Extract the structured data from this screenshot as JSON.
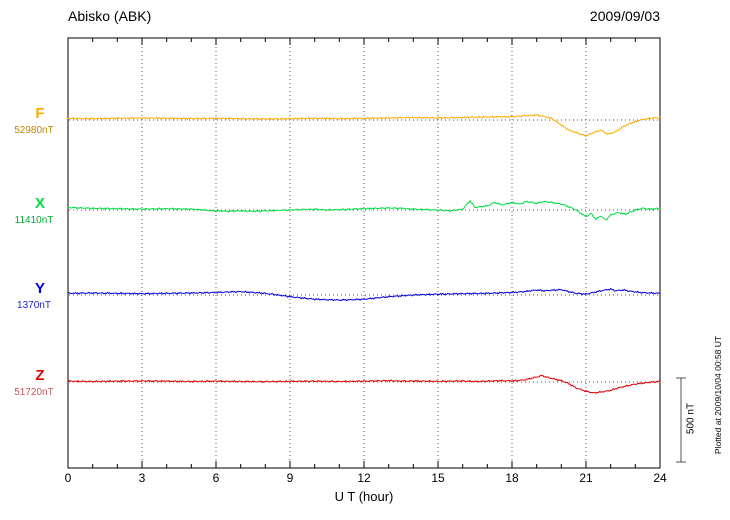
{
  "header": {
    "title": "Abisko (ABK)",
    "date": "2009/09/03"
  },
  "chart_data": {
    "type": "line",
    "station": "Abisko (ABK)",
    "date": "2009/09/03",
    "xlabel": "U T (hour)",
    "xlim": [
      0,
      24
    ],
    "x_ticks": [
      0,
      3,
      6,
      9,
      12,
      15,
      18,
      21,
      24
    ],
    "scale_bar": {
      "label": "500 nT",
      "nT": 500
    },
    "plotted_at": "Plotted at 2009/10/04 00:58 UT",
    "points_format": "[hour_UT, offset_nT_from_baseline]",
    "series": [
      {
        "name": "F",
        "baseline_label": "52980nT",
        "baseline_nT": 52980,
        "color": "#ffaa00",
        "value_color": "#bb8800",
        "points": [
          [
            0,
            10
          ],
          [
            1,
            8
          ],
          [
            2,
            10
          ],
          [
            3,
            12
          ],
          [
            4,
            10
          ],
          [
            5,
            8
          ],
          [
            6,
            10
          ],
          [
            7,
            8
          ],
          [
            8,
            6
          ],
          [
            9,
            8
          ],
          [
            10,
            10
          ],
          [
            11,
            8
          ],
          [
            12,
            10
          ],
          [
            13,
            12
          ],
          [
            14,
            15
          ],
          [
            15,
            12
          ],
          [
            16,
            15
          ],
          [
            17,
            18
          ],
          [
            18,
            20
          ],
          [
            18.5,
            25
          ],
          [
            19,
            30
          ],
          [
            19.3,
            20
          ],
          [
            19.6,
            10
          ],
          [
            20,
            -30
          ],
          [
            20.3,
            -60
          ],
          [
            20.7,
            -80
          ],
          [
            21,
            -95
          ],
          [
            21.3,
            -75
          ],
          [
            21.6,
            -60
          ],
          [
            21.9,
            -85
          ],
          [
            22.2,
            -70
          ],
          [
            22.5,
            -40
          ],
          [
            22.8,
            -20
          ],
          [
            23.2,
            0
          ],
          [
            23.6,
            10
          ],
          [
            24,
            15
          ]
        ]
      },
      {
        "name": "X",
        "baseline_label": "11410nT",
        "baseline_nT": 11410,
        "color": "#00dd44",
        "value_color": "#00aa33",
        "points": [
          [
            0,
            15
          ],
          [
            0.5,
            12
          ],
          [
            1,
            10
          ],
          [
            2,
            8
          ],
          [
            3,
            5
          ],
          [
            4,
            8
          ],
          [
            5,
            5
          ],
          [
            5.5,
            0
          ],
          [
            6,
            -5
          ],
          [
            6.5,
            -8
          ],
          [
            7,
            -5
          ],
          [
            7.5,
            -8
          ],
          [
            8,
            -5
          ],
          [
            9,
            0
          ],
          [
            10,
            5
          ],
          [
            10.5,
            0
          ],
          [
            11,
            2
          ],
          [
            12,
            8
          ],
          [
            13,
            12
          ],
          [
            13.5,
            10
          ],
          [
            14,
            5
          ],
          [
            15,
            0
          ],
          [
            15.5,
            -5
          ],
          [
            16,
            5
          ],
          [
            16.3,
            55
          ],
          [
            16.5,
            15
          ],
          [
            17,
            25
          ],
          [
            17.3,
            45
          ],
          [
            17.6,
            30
          ],
          [
            18,
            45
          ],
          [
            18.3,
            35
          ],
          [
            18.6,
            50
          ],
          [
            19,
            40
          ],
          [
            19.3,
            50
          ],
          [
            19.6,
            45
          ],
          [
            20,
            35
          ],
          [
            20.3,
            20
          ],
          [
            20.6,
            0
          ],
          [
            21,
            -40
          ],
          [
            21.2,
            -20
          ],
          [
            21.4,
            -55
          ],
          [
            21.6,
            -35
          ],
          [
            21.8,
            -60
          ],
          [
            22,
            -30
          ],
          [
            22.3,
            -15
          ],
          [
            22.6,
            -25
          ],
          [
            23,
            0
          ],
          [
            23.3,
            10
          ],
          [
            23.6,
            5
          ],
          [
            24,
            10
          ]
        ]
      },
      {
        "name": "Y",
        "baseline_label": "1370nT",
        "baseline_nT": 1370,
        "color": "#0000dd",
        "value_color": "#2222cc",
        "points": [
          [
            0,
            10
          ],
          [
            1,
            12
          ],
          [
            2,
            10
          ],
          [
            3,
            8
          ],
          [
            4,
            10
          ],
          [
            5,
            12
          ],
          [
            6,
            15
          ],
          [
            6.5,
            18
          ],
          [
            7,
            20
          ],
          [
            7.5,
            15
          ],
          [
            8,
            10
          ],
          [
            8.5,
            0
          ],
          [
            9,
            -10
          ],
          [
            9.5,
            -18
          ],
          [
            10,
            -25
          ],
          [
            10.5,
            -28
          ],
          [
            11,
            -30
          ],
          [
            11.5,
            -28
          ],
          [
            12,
            -25
          ],
          [
            12.5,
            -18
          ],
          [
            13,
            -10
          ],
          [
            13.5,
            -5
          ],
          [
            14,
            0
          ],
          [
            15,
            5
          ],
          [
            16,
            8
          ],
          [
            17,
            10
          ],
          [
            18,
            15
          ],
          [
            18.5,
            20
          ],
          [
            19,
            30
          ],
          [
            19.3,
            25
          ],
          [
            19.6,
            28
          ],
          [
            20,
            32
          ],
          [
            20.3,
            20
          ],
          [
            20.6,
            10
          ],
          [
            21,
            5
          ],
          [
            21.3,
            15
          ],
          [
            21.6,
            25
          ],
          [
            22,
            35
          ],
          [
            22.2,
            25
          ],
          [
            22.5,
            30
          ],
          [
            22.8,
            22
          ],
          [
            23.2,
            15
          ],
          [
            23.6,
            12
          ],
          [
            24,
            10
          ]
        ]
      },
      {
        "name": "Z",
        "baseline_label": "51720nT",
        "baseline_nT": 51720,
        "color": "#dd0000",
        "value_color": "#cc5555",
        "points": [
          [
            0,
            5
          ],
          [
            1,
            3
          ],
          [
            2,
            5
          ],
          [
            3,
            6
          ],
          [
            4,
            5
          ],
          [
            5,
            3
          ],
          [
            6,
            5
          ],
          [
            7,
            3
          ],
          [
            8,
            2
          ],
          [
            9,
            4
          ],
          [
            10,
            5
          ],
          [
            11,
            3
          ],
          [
            12,
            5
          ],
          [
            13,
            8
          ],
          [
            13.5,
            5
          ],
          [
            14,
            6
          ],
          [
            15,
            4
          ],
          [
            16,
            6
          ],
          [
            16.5,
            3
          ],
          [
            17,
            5
          ],
          [
            17.5,
            8
          ],
          [
            18,
            6
          ],
          [
            18.5,
            12
          ],
          [
            19,
            30
          ],
          [
            19.2,
            38
          ],
          [
            19.5,
            25
          ],
          [
            19.8,
            15
          ],
          [
            20,
            8
          ],
          [
            20.3,
            -10
          ],
          [
            20.6,
            -35
          ],
          [
            21,
            -55
          ],
          [
            21.3,
            -65
          ],
          [
            21.6,
            -60
          ],
          [
            22,
            -50
          ],
          [
            22.3,
            -35
          ],
          [
            22.6,
            -25
          ],
          [
            23,
            -12
          ],
          [
            23.4,
            -5
          ],
          [
            23.7,
            0
          ],
          [
            24,
            3
          ]
        ]
      }
    ]
  }
}
